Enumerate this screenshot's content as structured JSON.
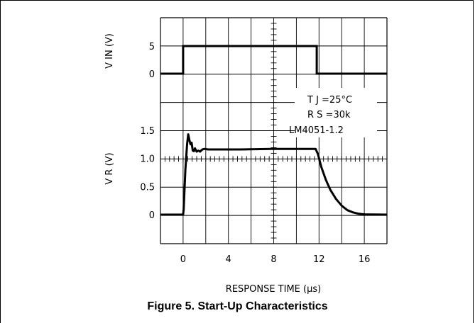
{
  "caption": "Figure 5. Start-Up Characteristics",
  "chart_data": {
    "type": "line",
    "x_label": "RESPONSE TIME (μs)",
    "x_ticks": [
      0,
      4,
      8,
      12,
      16
    ],
    "xlim": [
      -2,
      18
    ],
    "annotations": [
      "T J =25°C",
      "R S =30k",
      "LM4051-1.2"
    ],
    "top_panel": {
      "ylabel": "V IN (V)",
      "y_ticks": [
        0,
        5
      ],
      "series": [
        {
          "x": [
            -2,
            0,
            0,
            11.8,
            11.8,
            18
          ],
          "y": [
            0,
            0,
            5,
            5,
            0,
            0
          ]
        }
      ]
    },
    "bottom_panel": {
      "ylabel": "V R (V)",
      "y_ticks": [
        "0",
        "0.5",
        "1.0",
        "1.5"
      ],
      "series": [
        {
          "x": [
            -2,
            0,
            0.05,
            0.2,
            0.35,
            0.45,
            0.55,
            0.65,
            0.75,
            0.85,
            0.95,
            1.05,
            1.2,
            1.35,
            1.5,
            1.7,
            1.9,
            2.2,
            3,
            5,
            8,
            10,
            11.5,
            11.7,
            11.9,
            12.2,
            12.6,
            13.0,
            13.5,
            14.0,
            14.5,
            15.0,
            15.5,
            16.0,
            18
          ],
          "y": [
            0,
            0,
            0.1,
            0.8,
            1.25,
            1.43,
            1.33,
            1.25,
            1.28,
            1.14,
            1.13,
            1.18,
            1.12,
            1.14,
            1.12,
            1.16,
            1.17,
            1.16,
            1.16,
            1.16,
            1.17,
            1.17,
            1.17,
            1.17,
            1.08,
            0.85,
            0.62,
            0.44,
            0.28,
            0.16,
            0.08,
            0.04,
            0.015,
            0.005,
            0
          ]
        }
      ]
    }
  }
}
